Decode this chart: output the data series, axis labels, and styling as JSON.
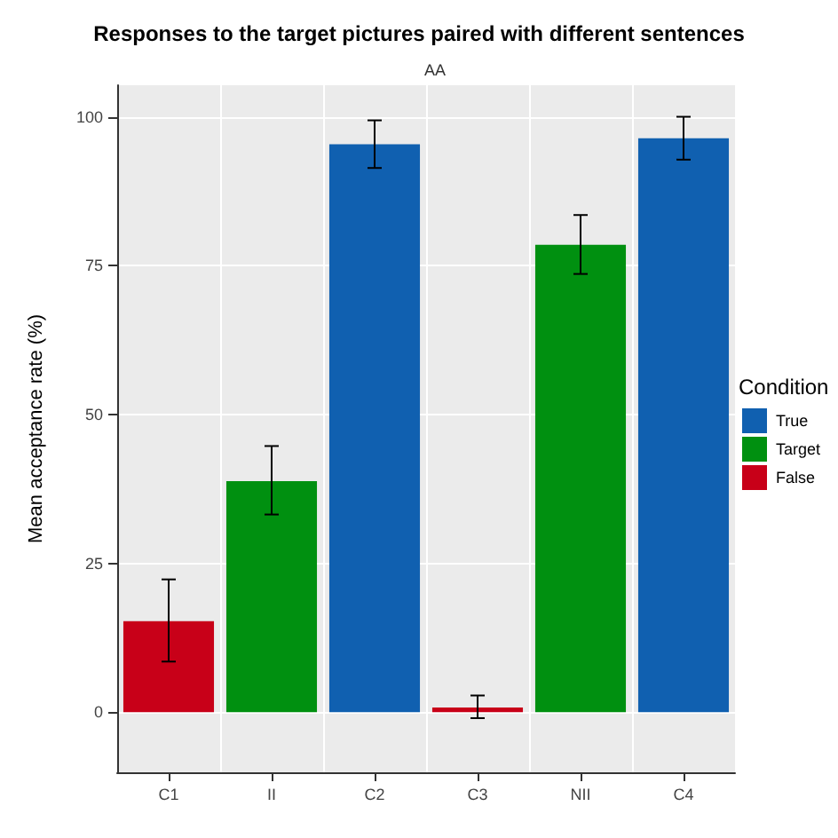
{
  "chart_data": {
    "type": "bar",
    "title": "Responses to the target pictures paired with different sentences",
    "subtitle": "AA",
    "ylabel": "Mean acceptance rate (%)",
    "legend_title": "Condition",
    "categories": [
      "C1",
      "II",
      "C2",
      "C3",
      "NII",
      "C4"
    ],
    "series": [
      {
        "name": "True",
        "color": "#1060b0",
        "values": [
          null,
          null,
          95.4,
          null,
          null,
          96.4
        ],
        "errors": [
          null,
          null,
          [
            91.4,
            99.4
          ],
          null,
          null,
          [
            92.8,
            100
          ]
        ]
      },
      {
        "name": "Target",
        "color": "#009010",
        "values": [
          null,
          38.8,
          null,
          null,
          78.5,
          null
        ],
        "errors": [
          null,
          [
            33.2,
            44.7
          ],
          null,
          null,
          [
            73.6,
            83.5
          ],
          null
        ]
      },
      {
        "name": "False",
        "color": "#c80018",
        "values": [
          15.3,
          null,
          null,
          0.8,
          null,
          null
        ],
        "errors": [
          [
            8.5,
            22.3
          ],
          null,
          null,
          [
            -1.0,
            2.8
          ],
          null,
          null
        ]
      }
    ],
    "ylim": [
      -10.1,
      105.3
    ],
    "yticks": [
      0,
      25,
      50,
      75,
      100
    ],
    "grid": true,
    "legend": "right"
  }
}
